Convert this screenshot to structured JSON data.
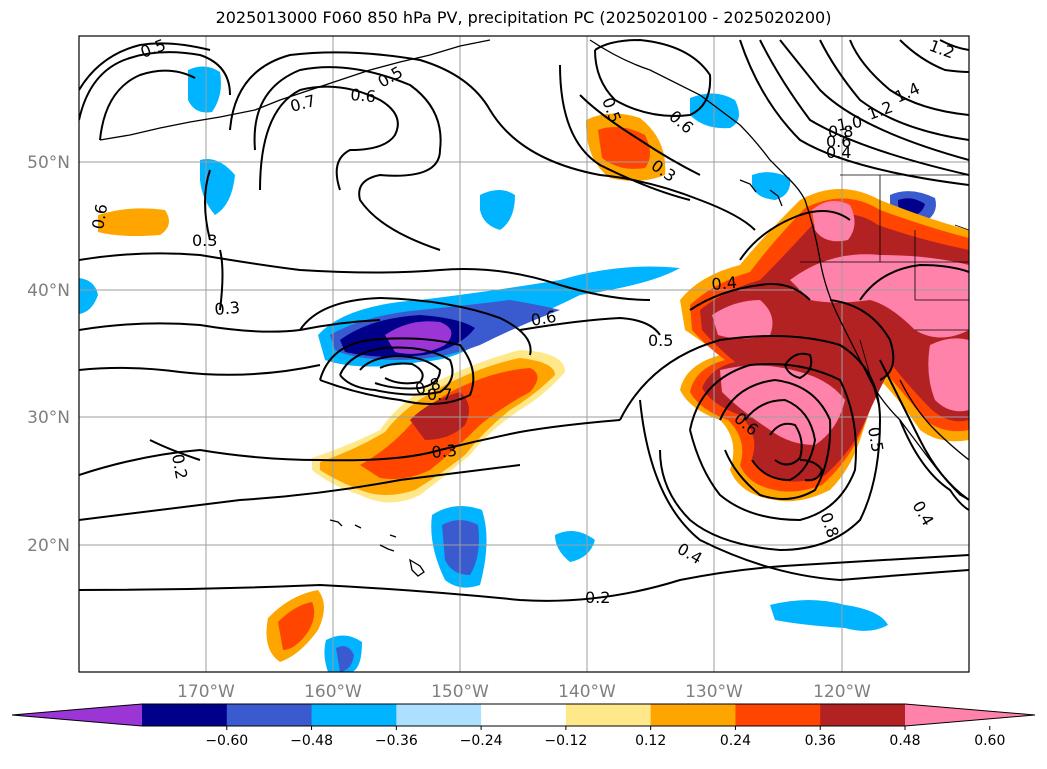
{
  "title": "2025013000 F060 850 hPa PV, precipitation PC (2025020100 - 2025020200)",
  "map": {
    "lon_labels": [
      "170°W",
      "160°W",
      "150°W",
      "140°W",
      "130°W",
      "120°W"
    ],
    "lat_labels": [
      "50°N",
      "40°N",
      "30°N",
      "20°N"
    ],
    "contour_labels": [
      {
        "name": "contour-label-05-nw",
        "text": "0.5"
      },
      {
        "name": "contour-label-07",
        "text": "0.7"
      },
      {
        "name": "contour-label-06-n",
        "text": "0.6"
      },
      {
        "name": "contour-label-05-ak",
        "text": "0.5"
      },
      {
        "name": "contour-label-05-gulf",
        "text": "0.5"
      },
      {
        "name": "contour-label-06-gulf",
        "text": "0.6"
      },
      {
        "name": "contour-label-03-gulf",
        "text": "0.3"
      },
      {
        "name": "contour-label-12-a",
        "text": "1.2"
      },
      {
        "name": "contour-label-14",
        "text": "1.4"
      },
      {
        "name": "contour-label-12-b",
        "text": "1.2"
      },
      {
        "name": "contour-label-10",
        "text": "1.0"
      },
      {
        "name": "contour-label-08-ne",
        "text": "0.8"
      },
      {
        "name": "contour-label-06-ne",
        "text": "0.6"
      },
      {
        "name": "contour-label-04-ne",
        "text": "0.4"
      },
      {
        "name": "contour-label-06-w",
        "text": "0.6"
      },
      {
        "name": "contour-label-03-w1",
        "text": "0.3"
      },
      {
        "name": "contour-label-03-w2",
        "text": "0.3"
      },
      {
        "name": "contour-label-06-c",
        "text": "0.6"
      },
      {
        "name": "contour-label-05-c",
        "text": "0.5"
      },
      {
        "name": "contour-label-04-e",
        "text": "0.4"
      },
      {
        "name": "contour-label-08-c",
        "text": "0.8"
      },
      {
        "name": "contour-label-07-c",
        "text": "0.7"
      },
      {
        "name": "contour-label-03-c",
        "text": "0.3"
      },
      {
        "name": "contour-label-02-w",
        "text": "0.2"
      },
      {
        "name": "contour-label-06-se",
        "text": "0.6"
      },
      {
        "name": "contour-label-08-se",
        "text": "0.8"
      },
      {
        "name": "contour-label-05-se",
        "text": "0.5"
      },
      {
        "name": "contour-label-04-se",
        "text": "0.4"
      },
      {
        "name": "contour-label-04-s",
        "text": "0.4"
      },
      {
        "name": "contour-label-02-s",
        "text": "0.2"
      }
    ]
  },
  "colorbar": {
    "tick_labels": [
      "−0.60",
      "−0.48",
      "−0.36",
      "−0.24",
      "−0.12",
      "0.12",
      "0.24",
      "0.36",
      "0.48",
      "0.60"
    ],
    "colors": [
      "#9b35d6",
      "#00008b",
      "#3a5bd0",
      "#00b4ff",
      "#ade0ff",
      "#ffffff",
      "#ffe88a",
      "#ffa500",
      "#ff4500",
      "#b22222",
      "#ff82ab"
    ]
  }
}
